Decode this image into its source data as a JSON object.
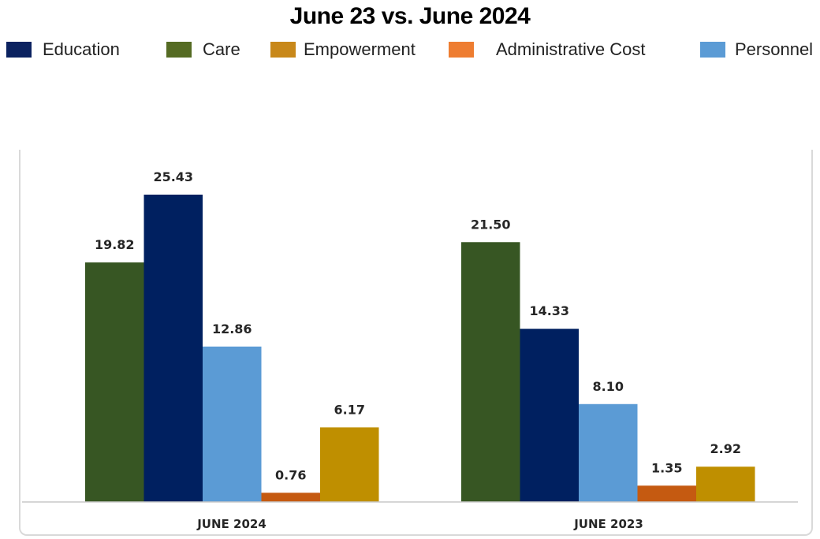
{
  "title": "June 23 vs. June 2024",
  "legend": [
    {
      "label": "Education",
      "color": "#0b2260"
    },
    {
      "label": "Care",
      "color": "#556b23"
    },
    {
      "label": "Empowerment",
      "color": "#c8881a"
    },
    {
      "label": "Administrative Cost",
      "color": "#ee7d31"
    },
    {
      "label": "Personnel",
      "color": "#5b9bd5"
    }
  ],
  "chart_data": {
    "type": "bar",
    "title": "June 23 vs. June 2024",
    "categories": [
      "JUNE 2024",
      "JUNE 2023"
    ],
    "bar_order": [
      "Care",
      "Education",
      "Personnel",
      "Administrative Cost",
      "Empowerment"
    ],
    "bar_colors": {
      "Care": "#375623",
      "Education": "#002060",
      "Personnel": "#5b9bd5",
      "Administrative Cost": "#c55a11",
      "Empowerment": "#bf8f00"
    },
    "series": [
      {
        "name": "Care",
        "values": [
          19.82,
          21.5
        ],
        "labels": [
          "19.82",
          "21.50"
        ]
      },
      {
        "name": "Education",
        "values": [
          25.43,
          14.33
        ],
        "labels": [
          "25.43",
          "14.33"
        ]
      },
      {
        "name": "Personnel",
        "values": [
          12.86,
          8.1
        ],
        "labels": [
          "12.86",
          "8.10"
        ]
      },
      {
        "name": "Administrative Cost",
        "values": [
          0.76,
          1.35
        ],
        "labels": [
          "0.76",
          "1.35"
        ]
      },
      {
        "name": "Empowerment",
        "values": [
          6.17,
          2.92
        ],
        "labels": [
          "6.17",
          "2.92"
        ]
      }
    ],
    "ylim": [
      0,
      30
    ],
    "grid": false,
    "legend_position": "top"
  }
}
